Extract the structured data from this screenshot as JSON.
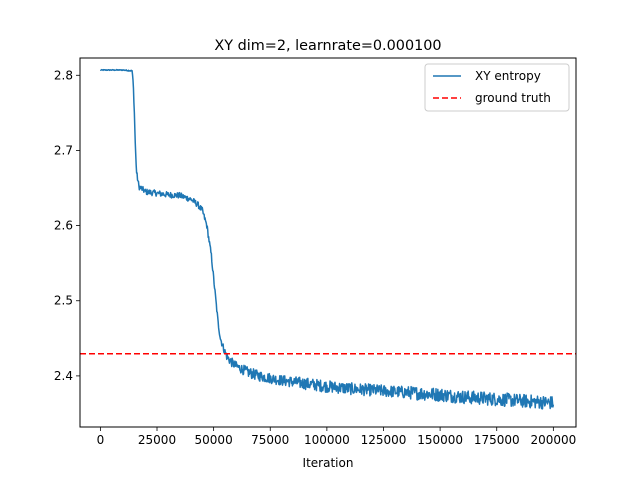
{
  "chart_data": {
    "type": "line",
    "title": "XY dim=2, learnrate=0.000100",
    "xlabel": "Iteration",
    "ylabel": "",
    "xlim": [
      -9000,
      210000
    ],
    "ylim": [
      2.332,
      2.823
    ],
    "xticks": [
      0,
      25000,
      50000,
      75000,
      100000,
      125000,
      150000,
      175000,
      200000
    ],
    "xtick_labels": [
      "0",
      "25000",
      "50000",
      "75000",
      "100000",
      "125000",
      "150000",
      "175000",
      "200000"
    ],
    "yticks": [
      2.4,
      2.5,
      2.6,
      2.7,
      2.8
    ],
    "ytick_labels": [
      "2.4",
      "2.5",
      "2.6",
      "2.7",
      "2.8"
    ],
    "legend_position": "top-right",
    "series": [
      {
        "name": "XY entropy",
        "color": "#1f77b4",
        "style": "solid",
        "x": [
          0,
          5000,
          10000,
          14000,
          14500,
          15000,
          15500,
          16000,
          17000,
          20000,
          25000,
          30000,
          35000,
          40000,
          43000,
          45000,
          47000,
          48000,
          49000,
          50000,
          51000,
          52000,
          53000,
          54000,
          55000,
          56000,
          58000,
          60000,
          65000,
          70000,
          75000,
          80000,
          90000,
          100000,
          110000,
          120000,
          130000,
          140000,
          150000,
          160000,
          170000,
          180000,
          190000,
          200000
        ],
        "y": [
          2.807,
          2.807,
          2.807,
          2.806,
          2.79,
          2.75,
          2.7,
          2.67,
          2.652,
          2.645,
          2.643,
          2.641,
          2.64,
          2.635,
          2.628,
          2.62,
          2.6,
          2.58,
          2.56,
          2.53,
          2.5,
          2.47,
          2.45,
          2.44,
          2.432,
          2.425,
          2.418,
          2.413,
          2.405,
          2.4,
          2.397,
          2.394,
          2.39,
          2.386,
          2.383,
          2.381,
          2.379,
          2.377,
          2.375,
          2.372,
          2.37,
          2.368,
          2.366,
          2.364
        ],
        "noise_amplitude": [
          0.0006,
          0.0006,
          0.0006,
          0.001,
          0.002,
          0.003,
          0.003,
          0.004,
          0.004,
          0.004,
          0.004,
          0.004,
          0.004,
          0.004,
          0.004,
          0.004,
          0.004,
          0.004,
          0.004,
          0.004,
          0.004,
          0.004,
          0.004,
          0.005,
          0.005,
          0.006,
          0.006,
          0.006,
          0.007,
          0.007,
          0.007,
          0.007,
          0.008,
          0.008,
          0.008,
          0.008,
          0.008,
          0.009,
          0.009,
          0.009,
          0.009,
          0.009,
          0.009,
          0.009
        ]
      },
      {
        "name": "ground truth",
        "color": "#ff0000",
        "style": "dashed",
        "y_constant": 2.4295
      }
    ]
  }
}
